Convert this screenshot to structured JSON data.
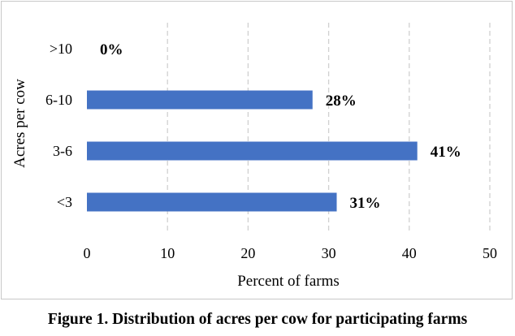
{
  "caption": "Figure 1. Distribution of acres per cow for participating farms",
  "chart_data": {
    "type": "bar",
    "orientation": "horizontal",
    "title": "",
    "xlabel": "Percent of farms",
    "ylabel": "Acres per cow",
    "categories": [
      ">10",
      "6-10",
      "3-6",
      "<3"
    ],
    "values": [
      0,
      28,
      41,
      31
    ],
    "data_labels": [
      "0%",
      "28%",
      "41%",
      "31%"
    ],
    "xlim": [
      0,
      50
    ],
    "xticks": [
      0,
      10,
      20,
      30,
      40,
      50
    ],
    "grid": "vertical dashed",
    "legend": "none",
    "bar_color": "#4472C4",
    "grid_color": "#d0d0d0"
  }
}
